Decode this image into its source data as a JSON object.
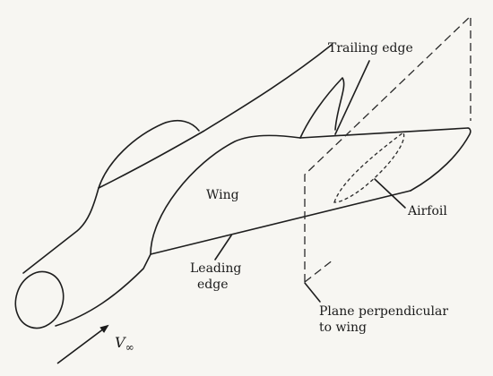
{
  "labels": {
    "trailing_edge": "Trailing edge",
    "wing": "Wing",
    "airfoil": "Airfoil",
    "leading_edge_line1": "Leading",
    "leading_edge_line2": "edge",
    "plane_line1": "Plane perpendicular",
    "plane_line2": "to wing",
    "velocity_symbol": "V",
    "velocity_subscript": "∞"
  }
}
